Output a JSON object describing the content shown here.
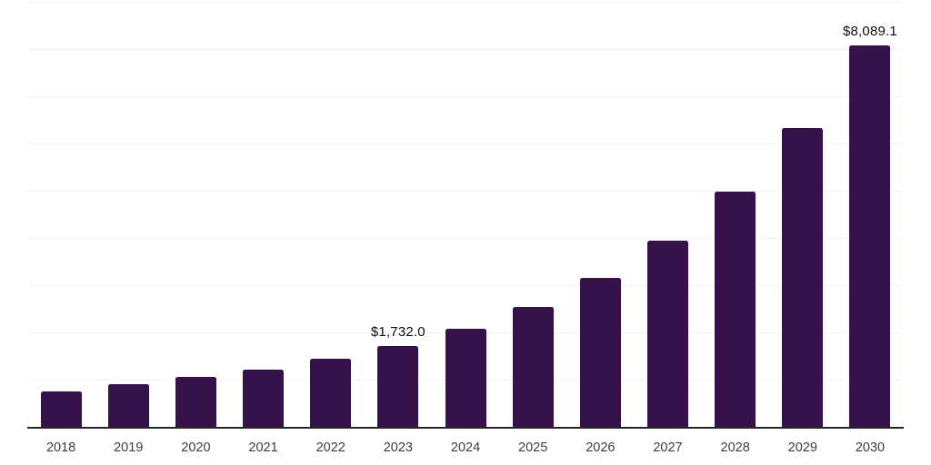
{
  "chart_data": {
    "type": "bar",
    "title": "",
    "xlabel": "",
    "ylabel": "",
    "categories": [
      "2018",
      "2019",
      "2020",
      "2021",
      "2022",
      "2023",
      "2024",
      "2025",
      "2026",
      "2027",
      "2028",
      "2029",
      "2030"
    ],
    "values": [
      765,
      915,
      1070,
      1240,
      1455,
      1732.0,
      2100,
      2560,
      3170,
      3955,
      5005,
      6340,
      8089.1
    ],
    "bar_labels": [
      "",
      "",
      "",
      "",
      "",
      "$1,732.0",
      "",
      "",
      "",
      "",
      "",
      "",
      "$8,089.1"
    ],
    "ylim": [
      0,
      9000
    ],
    "gridline_step": 1000,
    "grid": "horizontal-only",
    "legend": "none",
    "colors": {
      "bar": "#36124A",
      "gridline": "#f2f2f2",
      "axis_line": "#262626",
      "tick_label": "#3d3d3d",
      "value_label": "#0d0d0d",
      "background": "#ffffff"
    }
  }
}
